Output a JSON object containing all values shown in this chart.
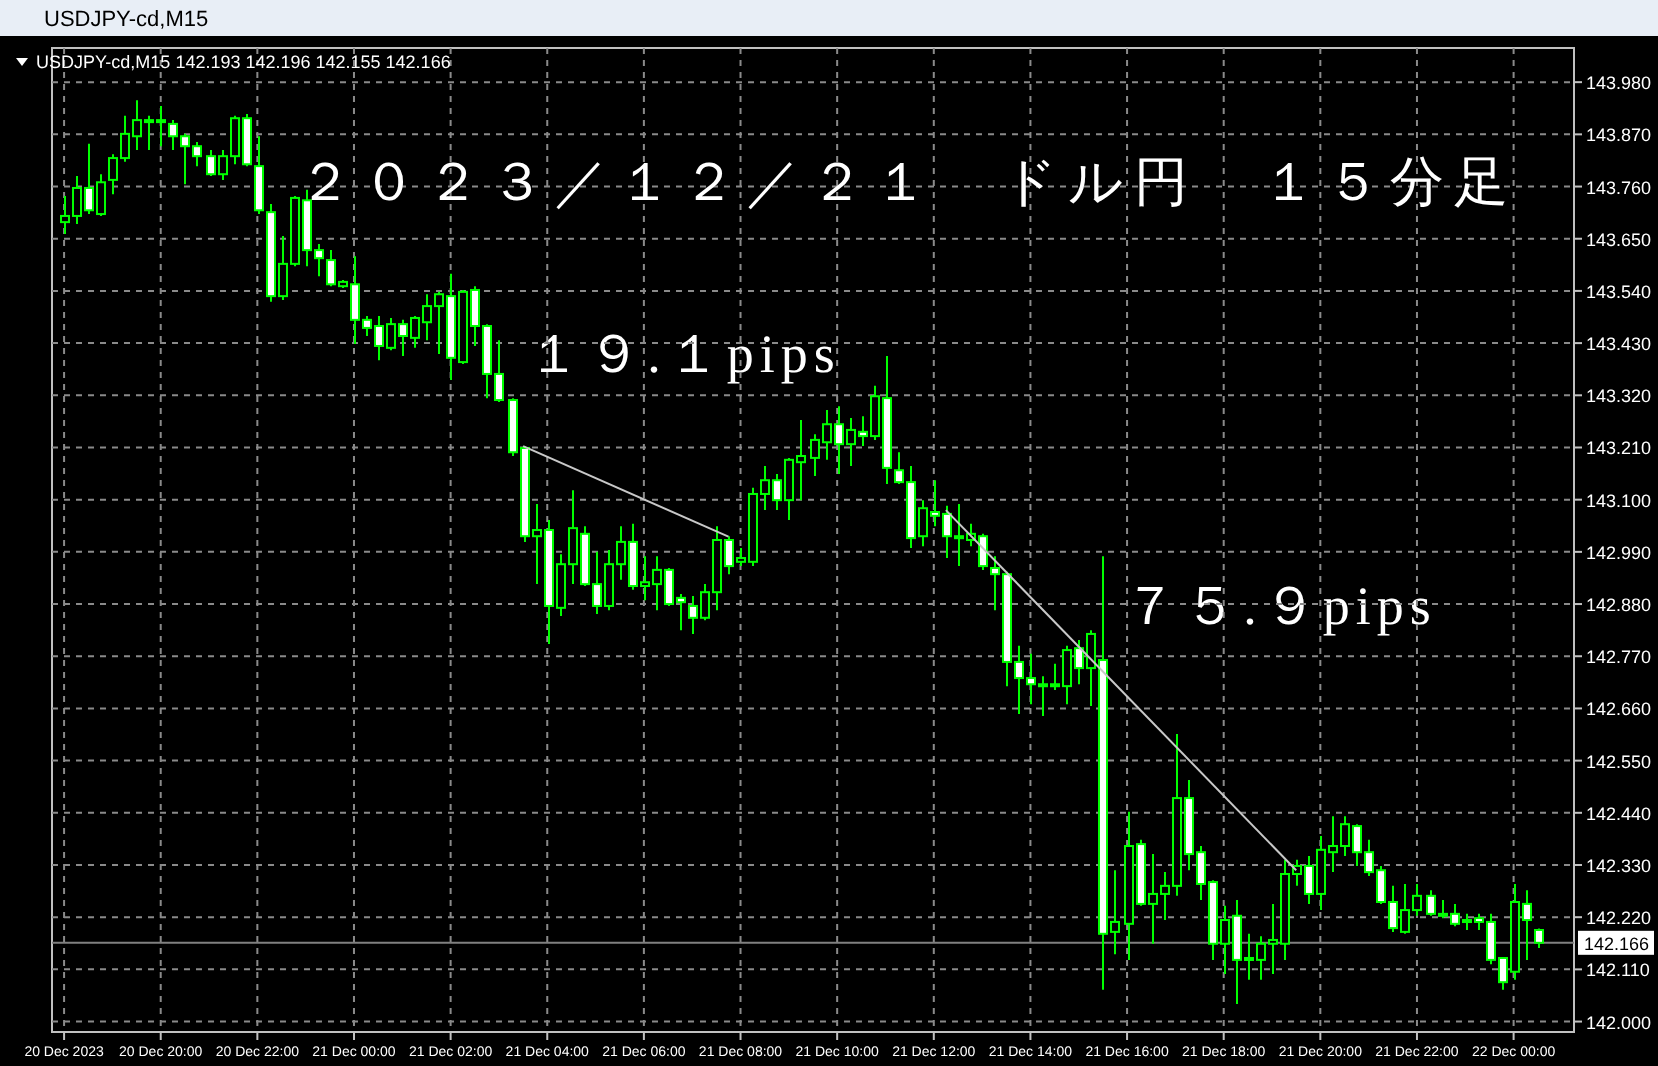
{
  "chart_data": {
    "type": "candlestick",
    "title": "２０２３／１２／２１　ドル円　１５分足",
    "subtitle": "USDJPY-cd,M15 142.193 142.196 142.155 142.166",
    "annotations": [
      "USDJPY-cd,M15",
      "１９.１pips",
      "７５.９pips"
    ],
    "color": "#00ff00",
    "grid": true,
    "xlim": [
      "2023-12-20T17:45",
      "2023-12-22T01:15"
    ],
    "ylim": [
      141.978,
      144.052
    ],
    "xticks": [
      {
        "value": "2023-12-20T18:00",
        "label": "20 Dec 2023"
      },
      {
        "value": "2023-12-20T20:00",
        "label": "20 Dec 20:00"
      },
      {
        "value": "2023-12-20T22:00",
        "label": "20 Dec 22:00"
      },
      {
        "value": "2023-12-21T00:00",
        "label": "21 Dec 00:00"
      },
      {
        "value": "2023-12-21T02:00",
        "label": "21 Dec 02:00"
      },
      {
        "value": "2023-12-21T04:00",
        "label": "21 Dec 04:00"
      },
      {
        "value": "2023-12-21T06:00",
        "label": "21 Dec 06:00"
      },
      {
        "value": "2023-12-21T08:00",
        "label": "21 Dec 08:00"
      },
      {
        "value": "2023-12-21T10:00",
        "label": "21 Dec 10:00"
      },
      {
        "value": "2023-12-21T12:00",
        "label": "21 Dec 12:00"
      },
      {
        "value": "2023-12-21T14:00",
        "label": "21 Dec 14:00"
      },
      {
        "value": "2023-12-21T16:00",
        "label": "21 Dec 16:00"
      },
      {
        "value": "2023-12-21T18:00",
        "label": "21 Dec 18:00"
      },
      {
        "value": "2023-12-21T20:00",
        "label": "21 Dec 20:00"
      },
      {
        "value": "2023-12-21T22:00",
        "label": "21 Dec 22:00"
      },
      {
        "value": "2023-12-22T00:00",
        "label": "22 Dec 00:00"
      }
    ],
    "yticks": [
      {
        "value": 142.0,
        "label": "142.000"
      },
      {
        "value": 142.11,
        "label": "142.110"
      },
      {
        "value": 142.22,
        "label": "142.220"
      },
      {
        "value": 142.33,
        "label": "142.330"
      },
      {
        "value": 142.44,
        "label": "142.440"
      },
      {
        "value": 142.55,
        "label": "142.550"
      },
      {
        "value": 142.66,
        "label": "142.660"
      },
      {
        "value": 142.77,
        "label": "142.770"
      },
      {
        "value": 142.88,
        "label": "142.880"
      },
      {
        "value": 142.99,
        "label": "142.990"
      },
      {
        "value": 143.1,
        "label": "143.100"
      },
      {
        "value": 143.21,
        "label": "143.210"
      },
      {
        "value": 143.32,
        "label": "143.320"
      },
      {
        "value": 143.43,
        "label": "143.430"
      },
      {
        "value": 143.54,
        "label": "143.540"
      },
      {
        "value": 143.65,
        "label": "143.650"
      },
      {
        "value": 143.76,
        "label": "143.760"
      },
      {
        "value": 143.87,
        "label": "143.870"
      },
      {
        "value": 143.98,
        "label": "143.980"
      }
    ],
    "ref_lines": [
      {
        "axis": "y",
        "value": 142.166,
        "label": "142.166",
        "color": "#808080"
      }
    ],
    "x": [
      "2023-12-20T18:00",
      "2023-12-20T18:15",
      "2023-12-20T18:30",
      "2023-12-20T18:45",
      "2023-12-20T19:00",
      "2023-12-20T19:15",
      "2023-12-20T19:30",
      "2023-12-20T19:45",
      "2023-12-20T20:00",
      "2023-12-20T20:15",
      "2023-12-20T20:30",
      "2023-12-20T20:45",
      "2023-12-20T21:00",
      "2023-12-20T21:15",
      "2023-12-20T21:30",
      "2023-12-20T21:45",
      "2023-12-20T22:00",
      "2023-12-20T22:15",
      "2023-12-20T22:30",
      "2023-12-20T22:45",
      "2023-12-20T23:00",
      "2023-12-20T23:15",
      "2023-12-20T23:30",
      "2023-12-20T23:45",
      "2023-12-21T00:00",
      "2023-12-21T00:15",
      "2023-12-21T00:30",
      "2023-12-21T00:45",
      "2023-12-21T01:00",
      "2023-12-21T01:15",
      "2023-12-21T01:30",
      "2023-12-21T01:45",
      "2023-12-21T02:00",
      "2023-12-21T02:15",
      "2023-12-21T02:30",
      "2023-12-21T02:45",
      "2023-12-21T03:00",
      "2023-12-21T03:15",
      "2023-12-21T03:30",
      "2023-12-21T03:45",
      "2023-12-21T04:00",
      "2023-12-21T04:15",
      "2023-12-21T04:30",
      "2023-12-21T04:45",
      "2023-12-21T05:00",
      "2023-12-21T05:15",
      "2023-12-21T05:30",
      "2023-12-21T05:45",
      "2023-12-21T06:00",
      "2023-12-21T06:15",
      "2023-12-21T06:30",
      "2023-12-21T06:45",
      "2023-12-21T07:00",
      "2023-12-21T07:15",
      "2023-12-21T07:30",
      "2023-12-21T07:45",
      "2023-12-21T08:00",
      "2023-12-21T08:15",
      "2023-12-21T08:30",
      "2023-12-21T08:45",
      "2023-12-21T09:00",
      "2023-12-21T09:15",
      "2023-12-21T09:30",
      "2023-12-21T09:45",
      "2023-12-21T10:00",
      "2023-12-21T10:15",
      "2023-12-21T10:30",
      "2023-12-21T10:45",
      "2023-12-21T11:00",
      "2023-12-21T11:15",
      "2023-12-21T11:30",
      "2023-12-21T11:45",
      "2023-12-21T12:00",
      "2023-12-21T12:15",
      "2023-12-21T12:30",
      "2023-12-21T12:45",
      "2023-12-21T13:00",
      "2023-12-21T13:15",
      "2023-12-21T13:30",
      "2023-12-21T13:45",
      "2023-12-21T14:00",
      "2023-12-21T14:15",
      "2023-12-21T14:30",
      "2023-12-21T14:45",
      "2023-12-21T15:00",
      "2023-12-21T15:15",
      "2023-12-21T15:30",
      "2023-12-21T15:45",
      "2023-12-21T16:00",
      "2023-12-21T16:15",
      "2023-12-21T16:30",
      "2023-12-21T16:45",
      "2023-12-21T17:00",
      "2023-12-21T17:15",
      "2023-12-21T17:30",
      "2023-12-21T17:45",
      "2023-12-21T18:00",
      "2023-12-21T18:15",
      "2023-12-21T18:30",
      "2023-12-21T18:45",
      "2023-12-21T19:00",
      "2023-12-21T19:15",
      "2023-12-21T19:30",
      "2023-12-21T19:45",
      "2023-12-21T20:00",
      "2023-12-21T20:15",
      "2023-12-21T20:30",
      "2023-12-21T20:45",
      "2023-12-21T21:00",
      "2023-12-21T21:15",
      "2023-12-21T21:30",
      "2023-12-21T21:45",
      "2023-12-21T22:00",
      "2023-12-21T22:15",
      "2023-12-21T22:30",
      "2023-12-21T22:45",
      "2023-12-21T23:00",
      "2023-12-21T23:15",
      "2023-12-21T23:30",
      "2023-12-21T23:45",
      "2023-12-22T00:00",
      "2023-12-22T00:15",
      "2023-12-22T00:30"
    ],
    "ohlc": [
      [
        143.685,
        143.74,
        143.66,
        143.698
      ],
      [
        143.698,
        143.782,
        143.681,
        143.757
      ],
      [
        143.757,
        143.85,
        143.702,
        143.71
      ],
      [
        143.702,
        143.786,
        143.698,
        143.769
      ],
      [
        143.774,
        143.828,
        143.744,
        143.82
      ],
      [
        143.82,
        143.909,
        143.812,
        143.871
      ],
      [
        143.866,
        143.942,
        143.837,
        143.9
      ],
      [
        143.896,
        143.909,
        143.837,
        143.9
      ],
      [
        143.9,
        143.93,
        143.845,
        143.896
      ],
      [
        143.892,
        143.9,
        143.837,
        143.866
      ],
      [
        143.866,
        143.871,
        143.765,
        143.845
      ],
      [
        143.845,
        143.854,
        143.803,
        143.824
      ],
      [
        143.824,
        143.837,
        143.782,
        143.786
      ],
      [
        143.786,
        143.837,
        143.774,
        143.824
      ],
      [
        143.824,
        143.909,
        143.807,
        143.904
      ],
      [
        143.904,
        143.913,
        143.803,
        143.807
      ],
      [
        143.803,
        143.866,
        143.702,
        143.71
      ],
      [
        143.706,
        143.723,
        143.517,
        143.529
      ],
      [
        143.529,
        143.656,
        143.521,
        143.597
      ],
      [
        143.597,
        143.74,
        143.592,
        143.736
      ],
      [
        143.731,
        143.753,
        143.592,
        143.626
      ],
      [
        143.626,
        143.639,
        143.571,
        143.609
      ],
      [
        143.605,
        143.626,
        143.55,
        143.554
      ],
      [
        143.55,
        143.563,
        143.546,
        143.559
      ],
      [
        143.554,
        143.613,
        143.428,
        143.479
      ],
      [
        143.479,
        143.487,
        143.445,
        143.462
      ],
      [
        143.466,
        143.487,
        143.394,
        143.424
      ],
      [
        143.42,
        143.483,
        143.415,
        143.47
      ],
      [
        143.47,
        143.479,
        143.403,
        143.445
      ],
      [
        143.441,
        143.487,
        143.42,
        143.483
      ],
      [
        143.474,
        143.533,
        143.436,
        143.508
      ],
      [
        143.508,
        143.538,
        143.407,
        143.533
      ],
      [
        143.529,
        143.576,
        143.352,
        143.399
      ],
      [
        143.39,
        143.542,
        143.386,
        143.538
      ],
      [
        143.542,
        143.55,
        143.424,
        143.466
      ],
      [
        143.466,
        143.47,
        143.314,
        143.365
      ],
      [
        143.365,
        143.436,
        143.306,
        143.31
      ],
      [
        143.31,
        143.314,
        143.192,
        143.2
      ],
      [
        143.209,
        143.213,
        143.011,
        143.023
      ],
      [
        143.023,
        143.091,
        142.922,
        143.036
      ],
      [
        143.036,
        143.057,
        142.796,
        142.876
      ],
      [
        142.872,
        142.985,
        142.855,
        142.964
      ],
      [
        142.964,
        143.12,
        142.922,
        143.04
      ],
      [
        143.028,
        143.044,
        142.918,
        142.922
      ],
      [
        142.922,
        142.99,
        142.859,
        142.876
      ],
      [
        142.876,
        142.994,
        142.867,
        142.964
      ],
      [
        142.964,
        143.044,
        142.931,
        143.011
      ],
      [
        143.011,
        143.049,
        142.91,
        142.918
      ],
      [
        142.918,
        142.981,
        142.888,
        142.926
      ],
      [
        142.922,
        142.981,
        142.867,
        142.952
      ],
      [
        142.952,
        142.956,
        142.876,
        142.88
      ],
      [
        142.893,
        142.901,
        142.825,
        142.884
      ],
      [
        142.876,
        142.897,
        142.817,
        142.851
      ],
      [
        142.851,
        142.922,
        142.846,
        142.905
      ],
      [
        142.905,
        143.044,
        142.867,
        143.015
      ],
      [
        143.015,
        143.023,
        142.943,
        142.96
      ],
      [
        142.969,
        142.998,
        142.96,
        142.977
      ],
      [
        142.969,
        143.125,
        142.96,
        143.112
      ],
      [
        143.112,
        143.171,
        143.078,
        143.141
      ],
      [
        143.141,
        143.154,
        143.078,
        143.099
      ],
      [
        143.099,
        143.188,
        143.057,
        143.184
      ],
      [
        143.179,
        143.268,
        143.099,
        143.192
      ],
      [
        143.188,
        143.238,
        143.15,
        143.226
      ],
      [
        143.221,
        143.289,
        143.184,
        143.259
      ],
      [
        143.259,
        143.297,
        143.154,
        143.217
      ],
      [
        143.217,
        143.272,
        143.171,
        143.247
      ],
      [
        143.243,
        143.276,
        143.213,
        143.234
      ],
      [
        143.234,
        143.34,
        143.226,
        143.318
      ],
      [
        143.314,
        143.403,
        143.133,
        143.167
      ],
      [
        143.162,
        143.2,
        143.133,
        143.137
      ],
      [
        143.137,
        143.171,
        142.998,
        143.019
      ],
      [
        143.023,
        143.099,
        143.002,
        143.082
      ],
      [
        143.074,
        143.141,
        143.044,
        143.066
      ],
      [
        143.07,
        143.087,
        142.977,
        143.023
      ],
      [
        143.023,
        143.091,
        142.96,
        143.019
      ],
      [
        143.015,
        143.049,
        143.002,
        143.028
      ],
      [
        143.023,
        143.028,
        142.952,
        142.96
      ],
      [
        142.956,
        142.981,
        142.867,
        142.943
      ],
      [
        142.943,
        142.948,
        142.707,
        142.758
      ],
      [
        142.758,
        142.792,
        142.648,
        142.724
      ],
      [
        142.724,
        142.775,
        142.669,
        142.711
      ],
      [
        142.711,
        142.728,
        142.644,
        142.707
      ],
      [
        142.711,
        142.754,
        142.699,
        142.707
      ],
      [
        142.707,
        142.792,
        142.669,
        142.783
      ],
      [
        142.787,
        142.804,
        142.711,
        142.745
      ],
      [
        142.745,
        142.825,
        142.665,
        142.817
      ],
      [
        142.762,
        142.981,
        142.067,
        142.185
      ],
      [
        142.189,
        142.319,
        142.142,
        142.21
      ],
      [
        142.206,
        142.442,
        142.13,
        142.37
      ],
      [
        142.374,
        142.383,
        142.244,
        142.248
      ],
      [
        142.248,
        142.353,
        142.164,
        142.269
      ],
      [
        142.269,
        142.315,
        142.214,
        142.286
      ],
      [
        142.286,
        142.606,
        142.265,
        142.471
      ],
      [
        142.471,
        142.509,
        142.319,
        142.353
      ],
      [
        142.357,
        142.37,
        142.256,
        142.29
      ],
      [
        142.294,
        142.298,
        142.13,
        142.164
      ],
      [
        142.164,
        142.244,
        142.1,
        142.214
      ],
      [
        142.223,
        142.256,
        142.037,
        142.13
      ],
      [
        142.134,
        142.185,
        142.088,
        142.13
      ],
      [
        142.13,
        142.18,
        142.088,
        142.164
      ],
      [
        142.164,
        142.248,
        142.1,
        142.172
      ],
      [
        142.164,
        142.341,
        142.13,
        142.311
      ],
      [
        142.311,
        142.341,
        142.286,
        142.328
      ],
      [
        142.328,
        142.349,
        142.248,
        142.269
      ],
      [
        142.269,
        142.391,
        142.235,
        142.362
      ],
      [
        142.357,
        142.433,
        142.315,
        142.37
      ],
      [
        142.37,
        142.433,
        142.349,
        142.416
      ],
      [
        142.412,
        142.416,
        142.328,
        142.357
      ],
      [
        142.357,
        142.383,
        142.307,
        142.315
      ],
      [
        142.319,
        142.328,
        142.248,
        142.252
      ],
      [
        142.252,
        142.286,
        142.189,
        142.197
      ],
      [
        142.189,
        142.29,
        142.185,
        142.235
      ],
      [
        142.235,
        142.29,
        142.223,
        142.265
      ],
      [
        142.265,
        142.277,
        142.223,
        142.227
      ],
      [
        142.227,
        142.256,
        142.218,
        142.223
      ],
      [
        142.227,
        142.248,
        142.201,
        142.206
      ],
      [
        142.21,
        142.227,
        142.193,
        142.214
      ],
      [
        142.218,
        142.227,
        142.193,
        142.21
      ],
      [
        142.21,
        142.227,
        142.121,
        142.13
      ],
      [
        142.134,
        142.134,
        142.067,
        142.083
      ],
      [
        142.105,
        142.29,
        142.088,
        142.252
      ],
      [
        142.248,
        142.277,
        142.13,
        142.214
      ],
      [
        142.193,
        142.196,
        142.155,
        142.166
      ]
    ],
    "series": [
      {
        "type": "line",
        "color": "#c8c8c8",
        "x": [
          "2023-12-21T03:30",
          "2023-12-21T07:45"
        ],
        "values": [
          143.213,
          143.022
        ]
      },
      {
        "type": "line",
        "color": "#c8c8c8",
        "x": [
          "2023-12-21T12:15",
          "2023-12-21T19:30"
        ],
        "values": [
          143.078,
          142.319
        ]
      }
    ]
  }
}
